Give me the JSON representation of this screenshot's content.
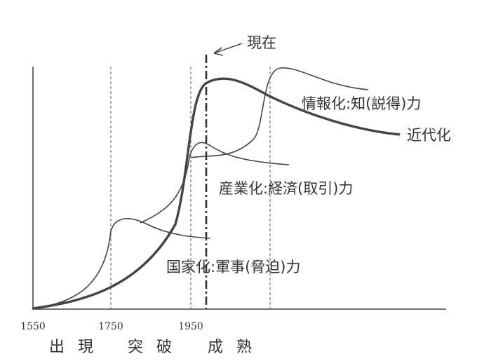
{
  "annotation": {
    "now": "現在"
  },
  "curves": [
    {
      "label": "情報化:知(説得)力"
    },
    {
      "label": "近代化"
    },
    {
      "label": "産業化:経済(取引)力"
    },
    {
      "label": "国家化:軍事(脅迫)力"
    }
  ],
  "x_labels": [
    "1550",
    "1750",
    "1950"
  ],
  "stages": [
    "出 現",
    "突 破",
    "成 熟"
  ]
}
